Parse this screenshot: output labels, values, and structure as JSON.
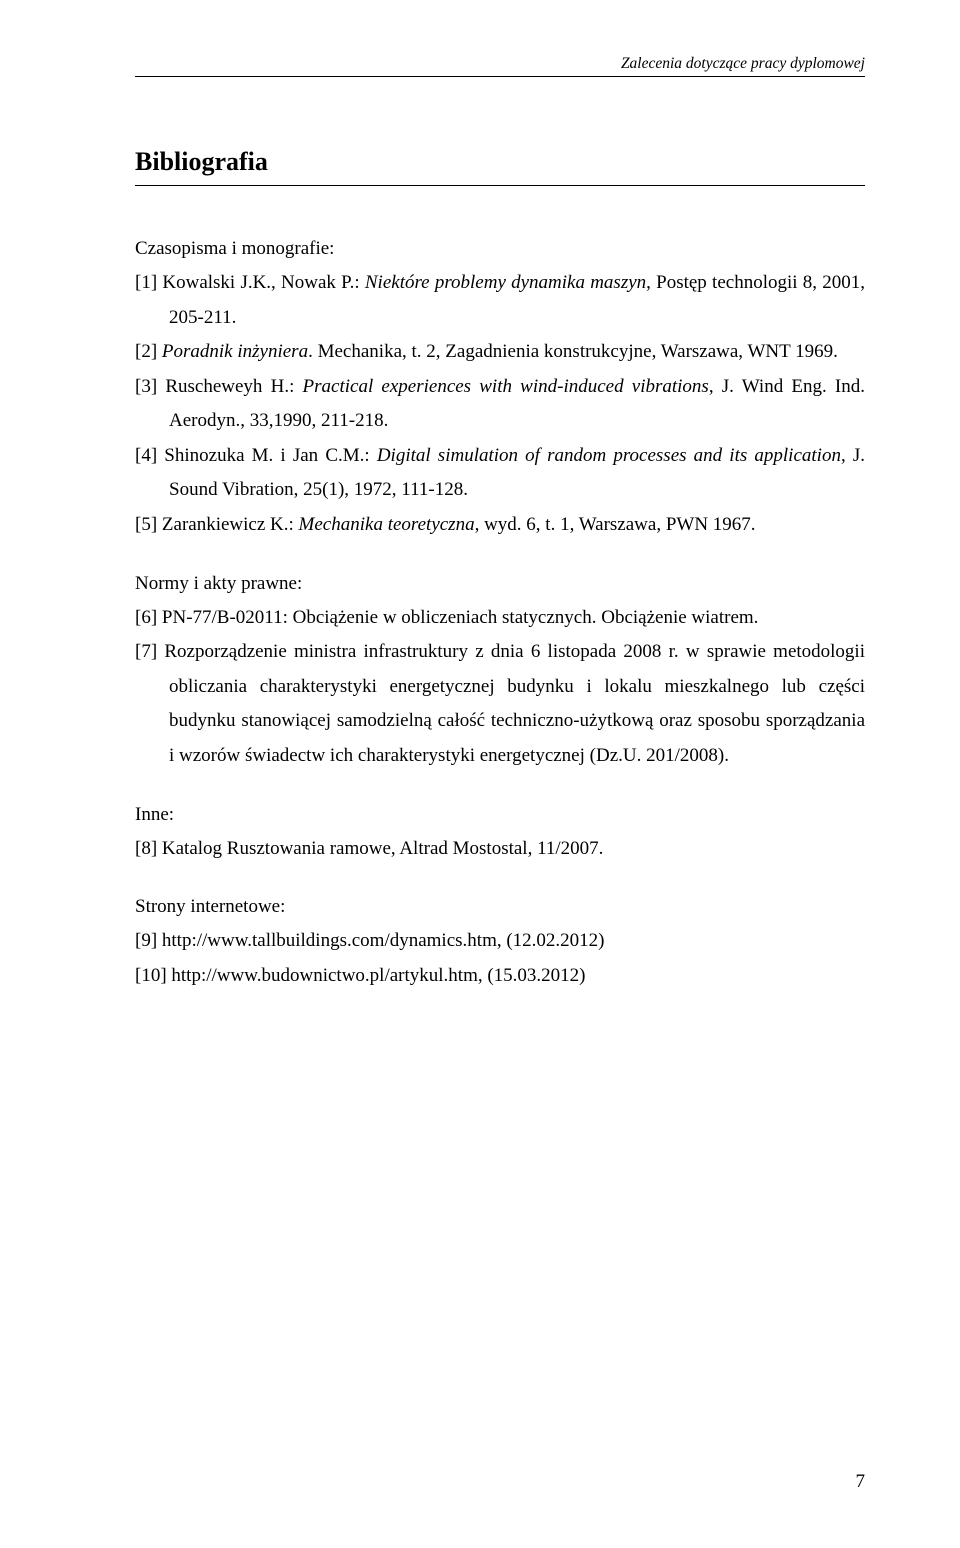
{
  "header": "Zalecenia dotyczące pracy dyplomowej",
  "sectionTitle": "Bibliografia",
  "groups": {
    "g1": {
      "heading": "Czasopisma i monografie:",
      "e1": {
        "ref": "[1]",
        "a": " Kowalski J.K., Nowak P.: ",
        "t": "Niektóre problemy dynamika maszyn",
        "b": ", Postęp technologii 8, 2001, 205-211."
      },
      "e2": {
        "ref": "[2]",
        "t": " Poradnik inżyniera",
        "a": ". Mechanika, t. 2, Zagadnienia konstrukcyjne, Warszawa, WNT 1969."
      },
      "e3": {
        "ref": "[3]",
        "a": " Ruscheweyh H.: ",
        "t": "Practical experiences with wind-induced vibrations",
        "b": ", J. Wind Eng. Ind. Aerodyn., 33,1990, 211-218."
      },
      "e4": {
        "ref": "[4]",
        "a": " Shinozuka M. i Jan C.M.: ",
        "t": "Digital simulation of random processes and its application",
        "b": ", J. Sound Vibration, 25(1), 1972, 111-128."
      },
      "e5": {
        "ref": "[5]",
        "a": " Zarankiewicz K.: ",
        "t": "Mechanika teoretyczna",
        "b": ", wyd. 6, t. 1, Warszawa, PWN 1967."
      }
    },
    "g2": {
      "heading": "Normy i akty prawne:",
      "e6": {
        "text": "[6] PN-77/B-02011: Obciążenie w obliczeniach statycznych. Obciążenie wiatrem."
      },
      "e7": {
        "text": "[7] Rozporządzenie ministra infrastruktury z dnia 6 listopada 2008 r. w sprawie metodologii obliczania charakterystyki energetycznej budynku i lokalu mieszkalnego lub części budynku stanowiącej samodzielną całość techniczno-użytkową oraz sposobu sporządzania i wzorów świadectw ich charakterystyki energetycznej (Dz.U. 201/2008)."
      }
    },
    "g3": {
      "heading": "Inne:",
      "e8": {
        "text": "[8] Katalog Rusztowania ramowe, Altrad Mostostal, 11/2007."
      }
    },
    "g4": {
      "heading": "Strony internetowe:",
      "e9": {
        "text": "[9] http://www.tallbuildings.com/dynamics.htm,  (12.02.2012)"
      },
      "e10": {
        "text": "[10] http://www.budownictwo.pl/artykul.htm,  (15.03.2012)"
      }
    }
  },
  "pageNumber": "7"
}
